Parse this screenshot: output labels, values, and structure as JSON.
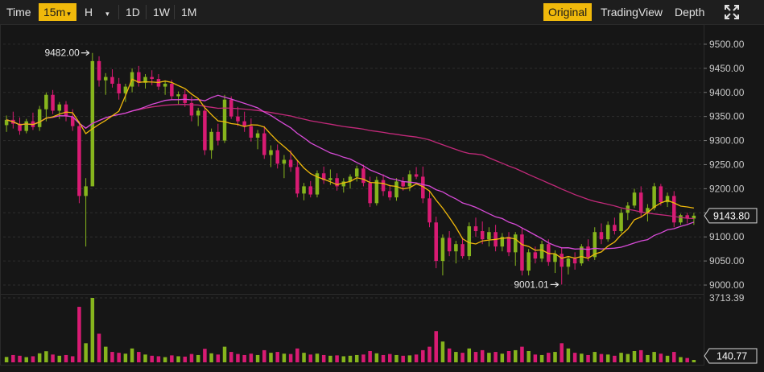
{
  "toolbar": {
    "time_label": "Time",
    "interval_active": "15m",
    "interval_caret": "▾",
    "hour_label": "H",
    "hour_caret": "▾",
    "day_label": "1D",
    "week_label": "1W",
    "month_label": "1M",
    "view_original": "Original",
    "view_tradingview": "TradingView",
    "view_depth": "Depth",
    "fullscreen_icon": "fullscreen-icon"
  },
  "colors": {
    "up": "#86b51d",
    "down": "#d81b73",
    "ma_short": "#f0b90b",
    "ma_mid": "#d84bd8",
    "ma_long": "#c2297a",
    "accent": "#f0b90b",
    "grid": "#2e2e2e"
  },
  "chart_data": {
    "type": "candlestick",
    "price_axis": {
      "ylim": [
        8990,
        9535
      ],
      "ticks": [
        9000,
        9050,
        9100,
        9150,
        9200,
        9250,
        9300,
        9350,
        9400,
        9450,
        9500
      ],
      "tick_labels": [
        "9000.00",
        "9050.00",
        "9100.00",
        "9150.00",
        "9200.00",
        "9250.00",
        "9300.00",
        "9350.00",
        "9400.00",
        "9450.00",
        "9500.00"
      ]
    },
    "volume_axis": {
      "max_label": "3713.39",
      "ylim": [
        0,
        3713.39
      ]
    },
    "annotations": {
      "high_label": "9482.00",
      "low_label": "9001.01",
      "last_price": "9143.80",
      "last_volume": "140.77"
    },
    "candles": [
      [
        9332,
        9352,
        9318,
        9343,
        310
      ],
      [
        9343,
        9360,
        9325,
        9335,
        420
      ],
      [
        9335,
        9348,
        9312,
        9320,
        380
      ],
      [
        9320,
        9345,
        9315,
        9340,
        300
      ],
      [
        9340,
        9358,
        9322,
        9328,
        350
      ],
      [
        9328,
        9372,
        9320,
        9365,
        520
      ],
      [
        9365,
        9400,
        9340,
        9395,
        640
      ],
      [
        9395,
        9405,
        9355,
        9362,
        450
      ],
      [
        9362,
        9380,
        9345,
        9375,
        380
      ],
      [
        9375,
        9382,
        9340,
        9350,
        420
      ],
      [
        9350,
        9365,
        9320,
        9330,
        350
      ],
      [
        9330,
        9340,
        9170,
        9185,
        3200
      ],
      [
        9185,
        9222,
        9080,
        9205,
        1100
      ],
      [
        9205,
        9482,
        9205,
        9465,
        3713
      ],
      [
        9465,
        9475,
        9412,
        9425,
        1650
      ],
      [
        9425,
        9440,
        9395,
        9432,
        900
      ],
      [
        9432,
        9448,
        9410,
        9418,
        600
      ],
      [
        9418,
        9430,
        9385,
        9398,
        550
      ],
      [
        9398,
        9418,
        9380,
        9412,
        500
      ],
      [
        9412,
        9450,
        9400,
        9442,
        800
      ],
      [
        9442,
        9455,
        9412,
        9420,
        600
      ],
      [
        9420,
        9438,
        9408,
        9432,
        450
      ],
      [
        9432,
        9446,
        9415,
        9428,
        380
      ],
      [
        9428,
        9438,
        9405,
        9412,
        350
      ],
      [
        9412,
        9425,
        9395,
        9418,
        300
      ],
      [
        9418,
        9426,
        9385,
        9392,
        400
      ],
      [
        9392,
        9402,
        9375,
        9396,
        350
      ],
      [
        9396,
        9405,
        9370,
        9378,
        330
      ],
      [
        9378,
        9392,
        9340,
        9352,
        480
      ],
      [
        9352,
        9368,
        9330,
        9362,
        420
      ],
      [
        9362,
        9374,
        9270,
        9280,
        780
      ],
      [
        9280,
        9325,
        9262,
        9318,
        520
      ],
      [
        9318,
        9335,
        9290,
        9300,
        450
      ],
      [
        9300,
        9395,
        9295,
        9385,
        900
      ],
      [
        9385,
        9392,
        9345,
        9350,
        600
      ],
      [
        9350,
        9370,
        9330,
        9340,
        480
      ],
      [
        9340,
        9360,
        9318,
        9330,
        420
      ],
      [
        9330,
        9346,
        9298,
        9306,
        500
      ],
      [
        9306,
        9322,
        9282,
        9315,
        420
      ],
      [
        9315,
        9330,
        9262,
        9270,
        700
      ],
      [
        9270,
        9290,
        9245,
        9280,
        550
      ],
      [
        9280,
        9292,
        9242,
        9252,
        600
      ],
      [
        9252,
        9270,
        9222,
        9260,
        500
      ],
      [
        9260,
        9280,
        9235,
        9245,
        480
      ],
      [
        9245,
        9258,
        9182,
        9190,
        800
      ],
      [
        9190,
        9212,
        9176,
        9205,
        550
      ],
      [
        9205,
        9216,
        9182,
        9188,
        450
      ],
      [
        9188,
        9238,
        9182,
        9232,
        500
      ],
      [
        9232,
        9246,
        9210,
        9218,
        420
      ],
      [
        9218,
        9240,
        9208,
        9222,
        380
      ],
      [
        9222,
        9232,
        9196,
        9205,
        400
      ],
      [
        9205,
        9222,
        9192,
        9215,
        350
      ],
      [
        9215,
        9230,
        9200,
        9225,
        380
      ],
      [
        9225,
        9248,
        9215,
        9242,
        420
      ],
      [
        9242,
        9250,
        9205,
        9212,
        450
      ],
      [
        9212,
        9225,
        9162,
        9170,
        650
      ],
      [
        9170,
        9225,
        9165,
        9218,
        520
      ],
      [
        9218,
        9230,
        9185,
        9195,
        420
      ],
      [
        9195,
        9208,
        9176,
        9182,
        480
      ],
      [
        9182,
        9222,
        9175,
        9215,
        420
      ],
      [
        9215,
        9224,
        9196,
        9205,
        380
      ],
      [
        9205,
        9238,
        9195,
        9230,
        400
      ],
      [
        9230,
        9245,
        9220,
        9225,
        450
      ],
      [
        9225,
        9246,
        9170,
        9180,
        700
      ],
      [
        9180,
        9195,
        9120,
        9130,
        900
      ],
      [
        9130,
        9142,
        9035,
        9050,
        1800
      ],
      [
        9050,
        9105,
        9020,
        9098,
        1200
      ],
      [
        9098,
        9112,
        9060,
        9070,
        800
      ],
      [
        9070,
        9092,
        9045,
        9085,
        600
      ],
      [
        9085,
        9098,
        9055,
        9060,
        550
      ],
      [
        9060,
        9130,
        9052,
        9122,
        800
      ],
      [
        9122,
        9140,
        9100,
        9112,
        600
      ],
      [
        9112,
        9132,
        9085,
        9095,
        700
      ],
      [
        9095,
        9120,
        9080,
        9110,
        550
      ],
      [
        9110,
        9125,
        9070,
        9080,
        600
      ],
      [
        9080,
        9108,
        9070,
        9100,
        500
      ],
      [
        9100,
        9110,
        9060,
        9068,
        650
      ],
      [
        9068,
        9110,
        9040,
        9105,
        700
      ],
      [
        9105,
        9118,
        9020,
        9030,
        900
      ],
      [
        9030,
        9075,
        9020,
        9068,
        650
      ],
      [
        9068,
        9080,
        9045,
        9055,
        450
      ],
      [
        9055,
        9092,
        9048,
        9085,
        420
      ],
      [
        9085,
        9095,
        9040,
        9048,
        550
      ],
      [
        9048,
        9072,
        9025,
        9065,
        600
      ],
      [
        9065,
        9078,
        9001,
        9038,
        1100
      ],
      [
        9038,
        9060,
        9022,
        9055,
        800
      ],
      [
        9055,
        9068,
        9032,
        9045,
        550
      ],
      [
        9045,
        9085,
        9040,
        9080,
        500
      ],
      [
        9080,
        9095,
        9050,
        9058,
        420
      ],
      [
        9058,
        9120,
        9052,
        9110,
        600
      ],
      [
        9110,
        9128,
        9085,
        9095,
        480
      ],
      [
        9095,
        9132,
        9090,
        9125,
        450
      ],
      [
        9125,
        9140,
        9105,
        9112,
        380
      ],
      [
        9112,
        9158,
        9108,
        9150,
        550
      ],
      [
        9150,
        9172,
        9135,
        9165,
        480
      ],
      [
        9165,
        9200,
        9160,
        9192,
        650
      ],
      [
        9192,
        9205,
        9140,
        9150,
        700
      ],
      [
        9150,
        9168,
        9132,
        9160,
        420
      ],
      [
        9160,
        9212,
        9155,
        9205,
        600
      ],
      [
        9205,
        9210,
        9165,
        9172,
        500
      ],
      [
        9172,
        9192,
        9162,
        9185,
        380
      ],
      [
        9185,
        9195,
        9120,
        9130,
        600
      ],
      [
        9130,
        9148,
        9125,
        9145,
        300
      ],
      [
        9145,
        9150,
        9128,
        9138,
        250
      ],
      [
        9138,
        9150,
        9125,
        9144,
        140
      ]
    ]
  }
}
